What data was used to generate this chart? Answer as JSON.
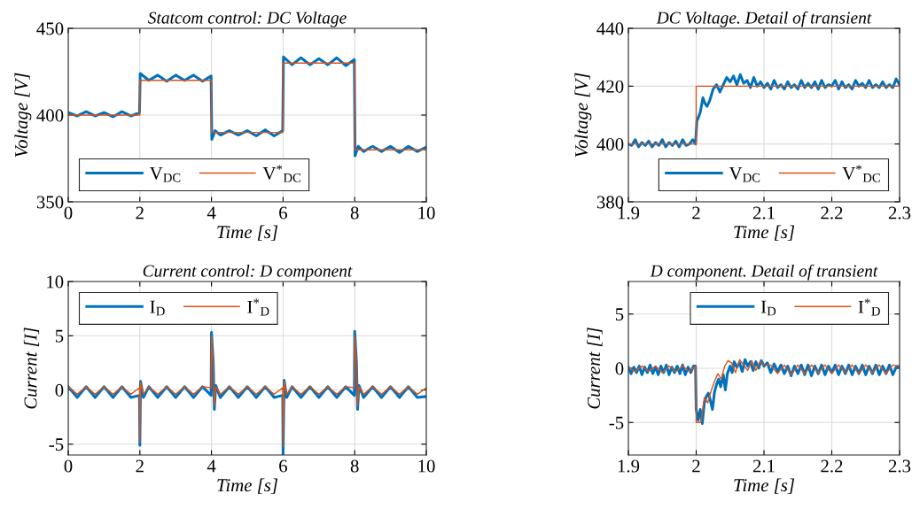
{
  "chart_data": [
    {
      "type": "line",
      "title": "Statcom control: DC Voltage",
      "xlabel": "Time [s]",
      "ylabel": "Voltage [V]",
      "xlim": [
        0,
        10
      ],
      "ylim": [
        350,
        450
      ],
      "xticks": [
        0,
        2,
        4,
        6,
        8,
        10
      ],
      "yticks": [
        350,
        400,
        450
      ],
      "grid": true,
      "legend": "bottom left",
      "series": [
        {
          "name": "V$_{DC}$",
          "color": "#0072bd",
          "x": [
            0,
            0.25,
            0.5,
            0.75,
            1.0,
            1.25,
            1.5,
            1.75,
            1.99,
            2.01,
            2.25,
            2.5,
            2.75,
            3.0,
            3.25,
            3.5,
            3.75,
            3.99,
            4.01,
            4.1,
            4.25,
            4.5,
            4.75,
            5.0,
            5.25,
            5.5,
            5.75,
            5.99,
            6.01,
            6.25,
            6.5,
            6.75,
            7.0,
            7.25,
            7.5,
            7.75,
            7.99,
            8.01,
            8.1,
            8.25,
            8.5,
            8.75,
            9.0,
            9.25,
            9.5,
            9.75,
            10
          ],
          "values": [
            401.5,
            399.5,
            402,
            399.5,
            401.5,
            399,
            402,
            399.5,
            401.5,
            424,
            420,
            423,
            419.5,
            423,
            420,
            423,
            419.5,
            422.5,
            386,
            391,
            388.5,
            391,
            388.5,
            391,
            388,
            391.5,
            388,
            391,
            433.5,
            429,
            433,
            429,
            432.5,
            429,
            433,
            428.5,
            432,
            376.5,
            382,
            379,
            382,
            379,
            382,
            378.5,
            382,
            379,
            381.5
          ]
        },
        {
          "name": "V$^{*}$$_{DC}$",
          "color": "#d95319",
          "x": [
            0,
            2,
            2,
            4,
            4,
            6,
            6,
            8,
            8,
            10
          ],
          "values": [
            400,
            400,
            420,
            420,
            390,
            390,
            430,
            430,
            380,
            380
          ]
        }
      ]
    },
    {
      "type": "line",
      "title": "DC Voltage. Detail of transient",
      "xlabel": "Time [s]",
      "ylabel": "Voltage [V]",
      "xlim": [
        1.9,
        2.3
      ],
      "ylim": [
        380,
        440
      ],
      "xticks": [
        1.9,
        2,
        2.1,
        2.2,
        2.3
      ],
      "yticks": [
        380,
        400,
        420,
        440
      ],
      "grid": true,
      "legend": "bottom right",
      "series": [
        {
          "name": "V$_{DC}$",
          "color": "#0072bd",
          "x": [
            1.9,
            1.905,
            1.91,
            1.915,
            1.92,
            1.925,
            1.93,
            1.935,
            1.94,
            1.945,
            1.95,
            1.955,
            1.96,
            1.965,
            1.97,
            1.975,
            1.98,
            1.985,
            1.99,
            1.995,
            1.999,
            2.001,
            2.003,
            2.006,
            2.01,
            2.013,
            2.016,
            2.02,
            2.025,
            2.03,
            2.035,
            2.04,
            2.045,
            2.05,
            2.055,
            2.06,
            2.065,
            2.07,
            2.075,
            2.08,
            2.085,
            2.09,
            2.095,
            2.1,
            2.105,
            2.11,
            2.115,
            2.12,
            2.125,
            2.13,
            2.135,
            2.14,
            2.145,
            2.15,
            2.155,
            2.16,
            2.165,
            2.17,
            2.175,
            2.18,
            2.185,
            2.19,
            2.195,
            2.2,
            2.205,
            2.21,
            2.215,
            2.22,
            2.225,
            2.23,
            2.235,
            2.24,
            2.245,
            2.25,
            2.255,
            2.26,
            2.265,
            2.27,
            2.275,
            2.28,
            2.285,
            2.29,
            2.295,
            2.3
          ],
          "values": [
            400,
            399.5,
            401.5,
            399,
            400.5,
            399.5,
            401,
            399,
            400.5,
            399.5,
            401.5,
            399,
            400.5,
            399.5,
            401,
            399,
            401.5,
            399.5,
            400,
            401.5,
            400,
            408,
            409,
            411,
            416,
            414,
            413,
            415,
            419,
            420.5,
            418,
            420.5,
            423,
            421.5,
            423.5,
            420.5,
            424,
            421,
            422,
            419.5,
            423,
            420,
            421.5,
            419.5,
            421,
            419,
            422,
            419.5,
            420.5,
            419,
            421.5,
            419.5,
            420.5,
            419,
            422,
            419.5,
            421,
            419.5,
            421.5,
            419,
            422,
            419.5,
            420.5,
            420,
            422,
            419,
            421.5,
            419.5,
            420.5,
            419,
            422,
            420,
            421,
            419.5,
            422,
            419.5,
            420.5,
            419.5,
            421.5,
            419.5,
            420.5,
            419.5,
            422.5,
            420.5
          ]
        },
        {
          "name": "V$^{*}$$_{DC}$",
          "color": "#d95319",
          "x": [
            1.9,
            2,
            2,
            2.3
          ],
          "values": [
            400,
            400,
            420,
            420
          ]
        }
      ]
    },
    {
      "type": "line",
      "title": "Current control: D component",
      "xlabel": "Time [s]",
      "ylabel": "Current [I]",
      "xlim": [
        0,
        10
      ],
      "ylim": [
        -6,
        10
      ],
      "xticks": [
        0,
        2,
        4,
        6,
        8,
        10
      ],
      "yticks": [
        -5,
        0,
        5,
        10
      ],
      "grid": true,
      "legend": "top left",
      "series": [
        {
          "name": "I$_{D}$",
          "color": "#0072bd",
          "x": [
            0,
            0.25,
            0.5,
            0.75,
            1.0,
            1.25,
            1.5,
            1.75,
            1.99,
            2.0,
            2.02,
            2.1,
            2.25,
            2.5,
            2.75,
            3.0,
            3.25,
            3.5,
            3.75,
            3.99,
            4.0,
            4.05,
            4.08,
            4.12,
            4.25,
            4.5,
            4.75,
            5.0,
            5.25,
            5.5,
            5.75,
            5.99,
            6.0,
            6.03,
            6.1,
            6.25,
            6.5,
            6.75,
            7.0,
            7.25,
            7.5,
            7.75,
            7.99,
            8.0,
            8.05,
            8.08,
            8.12,
            8.25,
            8.5,
            8.75,
            9.0,
            9.25,
            9.5,
            9.75,
            10
          ],
          "values": [
            0.3,
            -0.7,
            0.3,
            -0.7,
            0.3,
            -0.7,
            0.3,
            -0.7,
            -0.5,
            -5.1,
            0.8,
            -0.7,
            0.3,
            -0.7,
            0.3,
            -0.7,
            0.3,
            -0.7,
            0.3,
            -0.5,
            5.3,
            2.5,
            -1.8,
            0.4,
            -0.7,
            0.3,
            -0.7,
            0.3,
            -0.7,
            0.3,
            -0.7,
            -0.5,
            -5.9,
            0.9,
            -0.7,
            0.3,
            -0.7,
            0.3,
            -0.7,
            0.3,
            -0.7,
            0.3,
            -0.5,
            5.4,
            2.5,
            -1.8,
            0.4,
            -0.7,
            0.3,
            -0.7,
            0.3,
            -0.7,
            0.3,
            -0.7,
            -0.6
          ]
        },
        {
          "name": "I$^{*}$$_{D}$",
          "color": "#d95319",
          "x": [
            0,
            0.25,
            0.5,
            0.75,
            1.0,
            1.25,
            1.5,
            1.75,
            1.99,
            2.0,
            2.02,
            2.1,
            2.25,
            2.5,
            2.75,
            3.0,
            3.25,
            3.5,
            3.75,
            3.99,
            4.0,
            4.05,
            4.08,
            4.12,
            4.25,
            4.5,
            4.75,
            5.0,
            5.25,
            5.5,
            5.75,
            5.99,
            6.0,
            6.03,
            6.1,
            6.25,
            6.5,
            6.75,
            7.0,
            7.25,
            7.5,
            7.75,
            7.99,
            8.0,
            8.05,
            8.08,
            8.12,
            8.25,
            8.5,
            8.75,
            9.0,
            9.25,
            9.5,
            9.75,
            10
          ],
          "values": [
            0.3,
            -0.4,
            0.3,
            -0.4,
            0.3,
            -0.4,
            0.3,
            -0.4,
            0.2,
            -4.8,
            0.7,
            -0.4,
            0.3,
            -0.4,
            0.3,
            -0.4,
            0.3,
            -0.4,
            0.3,
            0.2,
            5.0,
            2.3,
            -1.5,
            0.3,
            -0.4,
            0.3,
            -0.4,
            0.3,
            -0.4,
            0.3,
            -0.4,
            0.2,
            -5.2,
            0.8,
            -0.4,
            0.3,
            -0.4,
            0.3,
            -0.4,
            0.3,
            -0.4,
            0.3,
            0.2,
            5.0,
            2.3,
            -1.5,
            0.3,
            -0.4,
            0.3,
            -0.4,
            0.3,
            -0.4,
            0.3,
            -0.4,
            0.2
          ]
        }
      ]
    },
    {
      "type": "line",
      "title": "D component. Detail of transient",
      "xlabel": "Time [s]",
      "ylabel": "Current [I]",
      "xlim": [
        1.9,
        2.3
      ],
      "ylim": [
        -8,
        8
      ],
      "xticks": [
        1.9,
        2,
        2.1,
        2.2,
        2.3
      ],
      "yticks": [
        -5,
        0,
        5
      ],
      "grid": true,
      "legend": "top right",
      "series": [
        {
          "name": "I$_{D}$",
          "color": "#0072bd",
          "x": [
            1.9,
            1.904,
            1.908,
            1.912,
            1.916,
            1.92,
            1.924,
            1.928,
            1.932,
            1.936,
            1.94,
            1.944,
            1.948,
            1.952,
            1.956,
            1.96,
            1.964,
            1.968,
            1.972,
            1.976,
            1.98,
            1.984,
            1.988,
            1.992,
            1.996,
            1.999,
            2.0,
            2.003,
            2.006,
            2.009,
            2.012,
            2.015,
            2.018,
            2.021,
            2.024,
            2.027,
            2.03,
            2.033,
            2.036,
            2.04,
            2.043,
            2.046,
            2.05,
            2.053,
            2.056,
            2.06,
            2.064,
            2.068,
            2.072,
            2.076,
            2.08,
            2.084,
            2.088,
            2.092,
            2.096,
            2.1,
            2.105,
            2.11,
            2.115,
            2.12,
            2.125,
            2.13,
            2.135,
            2.14,
            2.145,
            2.15,
            2.155,
            2.16,
            2.165,
            2.17,
            2.175,
            2.18,
            2.185,
            2.19,
            2.195,
            2.2,
            2.205,
            2.21,
            2.215,
            2.22,
            2.225,
            2.23,
            2.235,
            2.24,
            2.245,
            2.25,
            2.255,
            2.26,
            2.265,
            2.27,
            2.275,
            2.28,
            2.285,
            2.29,
            2.295,
            2.3
          ],
          "values": [
            0.1,
            -0.5,
            0.1,
            -0.4,
            0.2,
            -0.6,
            0.1,
            -0.4,
            0.3,
            -0.5,
            0.1,
            -0.6,
            0.2,
            -0.4,
            0.3,
            -0.6,
            0.1,
            -0.4,
            0.2,
            -0.5,
            0.3,
            -0.6,
            0.1,
            -0.4,
            0.2,
            0.2,
            -3.8,
            -4.8,
            -3.8,
            -5.1,
            -3.2,
            -2.6,
            -2.3,
            -3.0,
            -3.8,
            -2.2,
            -1.5,
            -1.0,
            -1.7,
            -0.6,
            -2.0,
            -0.5,
            0.2,
            -0.4,
            0.6,
            0.1,
            0.5,
            -0.3,
            0.8,
            0.2,
            0.6,
            -0.2,
            0.6,
            0.0,
            0.7,
            0.2,
            0.5,
            -0.4,
            0.4,
            -0.3,
            0.3,
            -0.5,
            0.2,
            -0.7,
            0.2,
            -0.5,
            0.3,
            -0.6,
            0.3,
            -0.7,
            0.2,
            -0.5,
            0.3,
            -0.6,
            0.2,
            -0.4,
            0.3,
            -0.6,
            0.2,
            -0.5,
            0.3,
            -0.6,
            0.2,
            -0.5,
            0.3,
            -0.6,
            0.2,
            -0.5,
            0.3,
            -0.6,
            0.2,
            -0.5,
            0.3,
            -0.6,
            0.1,
            0.2
          ]
        },
        {
          "name": "I$^{*}$$_{D}$",
          "color": "#d95319",
          "x": [
            1.9,
            1.91,
            1.92,
            1.93,
            1.94,
            1.95,
            1.96,
            1.97,
            1.98,
            1.99,
            1.999,
            2.0,
            2.007,
            2.012,
            2.017,
            2.022,
            2.027,
            2.032,
            2.037,
            2.042,
            2.047,
            2.052,
            2.058,
            2.064,
            2.07,
            2.076,
            2.082,
            2.088,
            2.094,
            2.1,
            2.11,
            2.12,
            2.13,
            2.14,
            2.15,
            2.16,
            2.17,
            2.18,
            2.19,
            2.2,
            2.21,
            2.22,
            2.23,
            2.24,
            2.25,
            2.26,
            2.27,
            2.28,
            2.29,
            2.3
          ],
          "values": [
            0.1,
            -0.3,
            0.2,
            -0.3,
            0.2,
            -0.4,
            0.2,
            -0.3,
            0.2,
            -0.3,
            0.2,
            -5.0,
            -5.0,
            -2.7,
            -3.2,
            -2.1,
            -1.2,
            -0.5,
            -1.0,
            0.2,
            0.7,
            0.5,
            -0.4,
            0.8,
            0.3,
            -0.2,
            0.7,
            -0.2,
            0.6,
            0.3,
            0.3,
            -0.5,
            0.3,
            -0.6,
            0.3,
            -0.5,
            0.3,
            -0.4,
            0.3,
            -0.5,
            0.3,
            -0.4,
            0.3,
            -0.5,
            0.3,
            -0.4,
            0.3,
            -0.5,
            0.3,
            0.2
          ]
        }
      ]
    }
  ]
}
